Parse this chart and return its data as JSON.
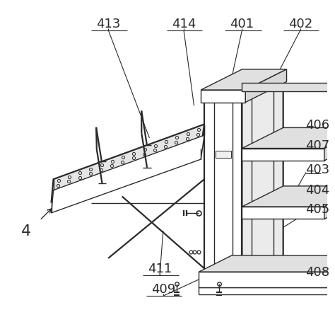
{
  "bg_color": "#ffffff",
  "lc": "#2a2a2a",
  "lw": 1.0,
  "lw2": 1.6,
  "fs": 13,
  "fs_small": 11
}
